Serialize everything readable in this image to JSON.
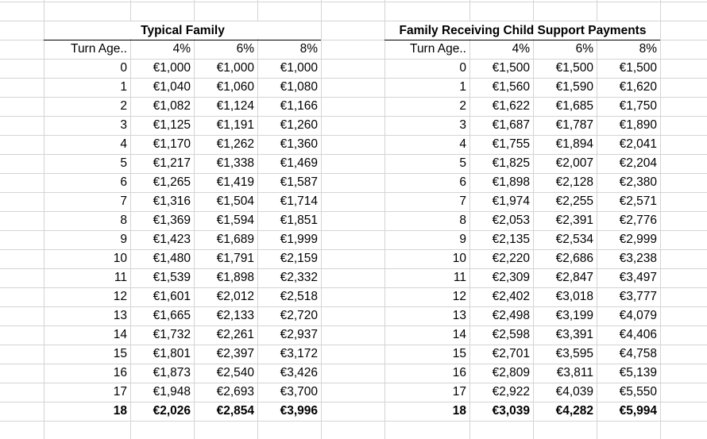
{
  "tables": [
    {
      "title": "Typical Family",
      "headers": [
        "Turn Age..",
        "4%",
        "6%",
        "8%"
      ],
      "rows": [
        [
          "0",
          "€1,000",
          "€1,000",
          "€1,000"
        ],
        [
          "1",
          "€1,040",
          "€1,060",
          "€1,080"
        ],
        [
          "2",
          "€1,082",
          "€1,124",
          "€1,166"
        ],
        [
          "3",
          "€1,125",
          "€1,191",
          "€1,260"
        ],
        [
          "4",
          "€1,170",
          "€1,262",
          "€1,360"
        ],
        [
          "5",
          "€1,217",
          "€1,338",
          "€1,469"
        ],
        [
          "6",
          "€1,265",
          "€1,419",
          "€1,587"
        ],
        [
          "7",
          "€1,316",
          "€1,504",
          "€1,714"
        ],
        [
          "8",
          "€1,369",
          "€1,594",
          "€1,851"
        ],
        [
          "9",
          "€1,423",
          "€1,689",
          "€1,999"
        ],
        [
          "10",
          "€1,480",
          "€1,791",
          "€2,159"
        ],
        [
          "11",
          "€1,539",
          "€1,898",
          "€2,332"
        ],
        [
          "12",
          "€1,601",
          "€2,012",
          "€2,518"
        ],
        [
          "13",
          "€1,665",
          "€2,133",
          "€2,720"
        ],
        [
          "14",
          "€1,732",
          "€2,261",
          "€2,937"
        ],
        [
          "15",
          "€1,801",
          "€2,397",
          "€3,172"
        ],
        [
          "16",
          "€1,873",
          "€2,540",
          "€3,426"
        ],
        [
          "17",
          "€1,948",
          "€2,693",
          "€3,700"
        ],
        [
          "18",
          "€2,026",
          "€2,854",
          "€3,996"
        ]
      ]
    },
    {
      "title": "Family Receiving Child Support Payments",
      "headers": [
        "Turn Age..",
        "4%",
        "6%",
        "8%"
      ],
      "rows": [
        [
          "0",
          "€1,500",
          "€1,500",
          "€1,500"
        ],
        [
          "1",
          "€1,560",
          "€1,590",
          "€1,620"
        ],
        [
          "2",
          "€1,622",
          "€1,685",
          "€1,750"
        ],
        [
          "3",
          "€1,687",
          "€1,787",
          "€1,890"
        ],
        [
          "4",
          "€1,755",
          "€1,894",
          "€2,041"
        ],
        [
          "5",
          "€1,825",
          "€2,007",
          "€2,204"
        ],
        [
          "6",
          "€1,898",
          "€2,128",
          "€2,380"
        ],
        [
          "7",
          "€1,974",
          "€2,255",
          "€2,571"
        ],
        [
          "8",
          "€2,053",
          "€2,391",
          "€2,776"
        ],
        [
          "9",
          "€2,135",
          "€2,534",
          "€2,999"
        ],
        [
          "10",
          "€2,220",
          "€2,686",
          "€3,238"
        ],
        [
          "11",
          "€2,309",
          "€2,847",
          "€3,497"
        ],
        [
          "12",
          "€2,402",
          "€3,018",
          "€3,777"
        ],
        [
          "13",
          "€2,498",
          "€3,199",
          "€4,079"
        ],
        [
          "14",
          "€2,598",
          "€3,391",
          "€4,406"
        ],
        [
          "15",
          "€2,701",
          "€3,595",
          "€4,758"
        ],
        [
          "16",
          "€2,809",
          "€3,811",
          "€5,139"
        ],
        [
          "17",
          "€2,922",
          "€4,039",
          "€5,550"
        ],
        [
          "18",
          "€3,039",
          "€4,282",
          "€5,994"
        ]
      ]
    }
  ]
}
